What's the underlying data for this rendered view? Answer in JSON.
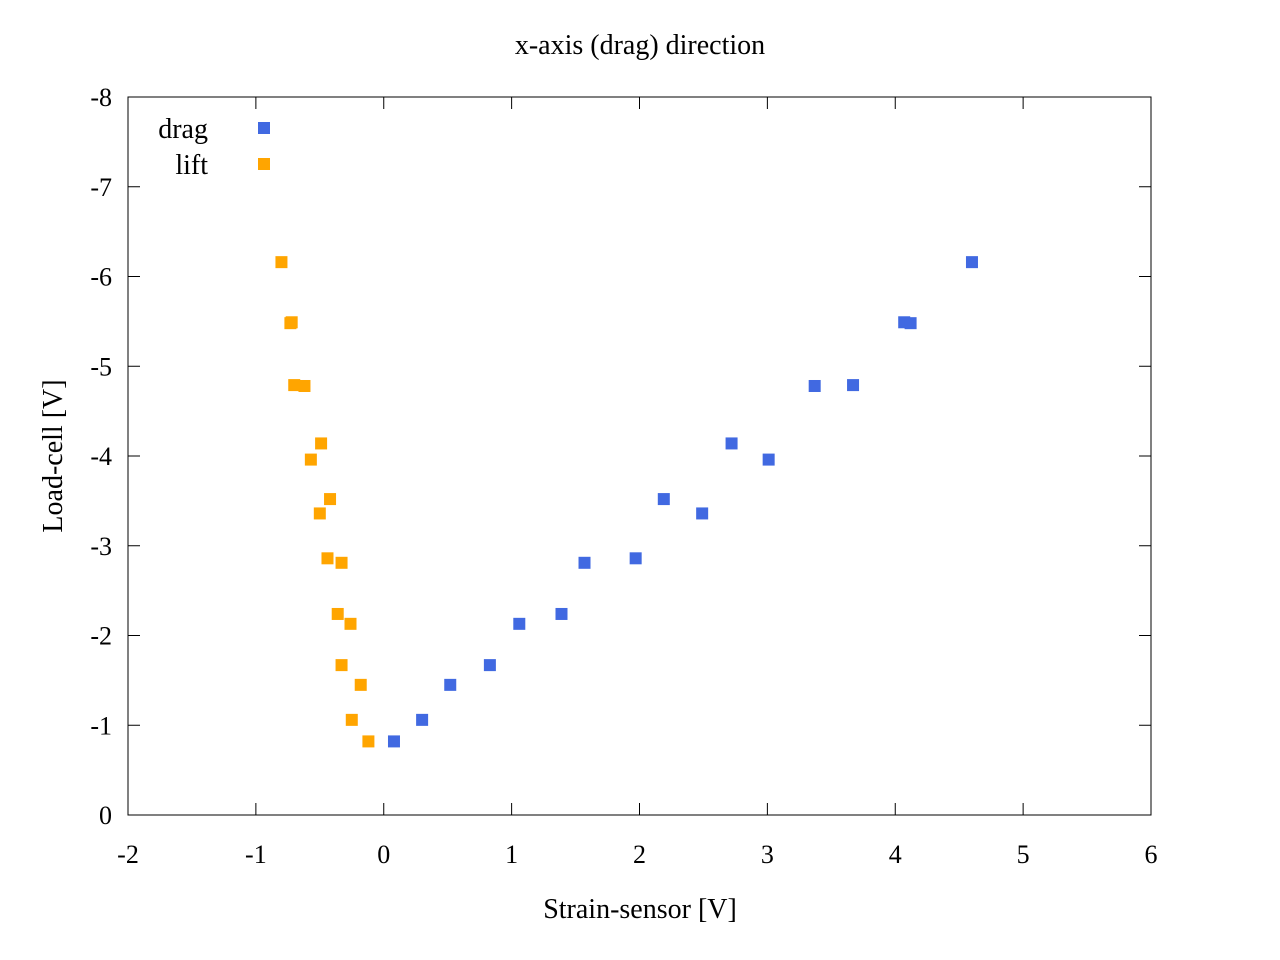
{
  "chart_data": {
    "type": "scatter",
    "title": "x-axis (drag) direction",
    "xlabel": "Strain-sensor [V]",
    "ylabel": "Load-cell [V]",
    "xlim": [
      -2,
      6
    ],
    "ylim": [
      0,
      -8
    ],
    "y_axis_inverted": true,
    "xticks": [
      "-2",
      "-1",
      "0",
      "1",
      "2",
      "3",
      "4",
      "5",
      "6"
    ],
    "xtick_values": [
      -2,
      -1,
      0,
      1,
      2,
      3,
      4,
      5,
      6
    ],
    "yticks": [
      "0",
      "-1",
      "-2",
      "-3",
      "-4",
      "-5",
      "-6",
      "-7",
      "-8"
    ],
    "ytick_values": [
      0,
      -1,
      -2,
      -3,
      -4,
      -5,
      -6,
      -7,
      -8
    ],
    "grid": false,
    "legend_position": "top-left",
    "marker": "square",
    "series": [
      {
        "name": "drag",
        "color": "#4169E1",
        "points": [
          [
            0.08,
            -0.82
          ],
          [
            0.3,
            -1.06
          ],
          [
            0.52,
            -1.45
          ],
          [
            0.83,
            -1.67
          ],
          [
            1.06,
            -2.13
          ],
          [
            1.39,
            -2.24
          ],
          [
            1.57,
            -2.81
          ],
          [
            1.97,
            -2.86
          ],
          [
            2.19,
            -3.52
          ],
          [
            2.49,
            -3.36
          ],
          [
            2.72,
            -4.14
          ],
          [
            3.01,
            -3.96
          ],
          [
            3.37,
            -4.78
          ],
          [
            3.67,
            -4.79
          ],
          [
            4.07,
            -5.49
          ],
          [
            4.12,
            -5.48
          ],
          [
            4.6,
            -6.16
          ]
        ]
      },
      {
        "name": "lift",
        "color": "#FFA500",
        "points": [
          [
            -0.12,
            -0.82
          ],
          [
            -0.25,
            -1.06
          ],
          [
            -0.18,
            -1.45
          ],
          [
            -0.33,
            -1.67
          ],
          [
            -0.26,
            -2.13
          ],
          [
            -0.36,
            -2.24
          ],
          [
            -0.33,
            -2.81
          ],
          [
            -0.44,
            -2.86
          ],
          [
            -0.5,
            -3.36
          ],
          [
            -0.42,
            -3.52
          ],
          [
            -0.57,
            -3.96
          ],
          [
            -0.49,
            -4.14
          ],
          [
            -0.7,
            -4.79
          ],
          [
            -0.62,
            -4.78
          ],
          [
            -0.73,
            -5.48
          ],
          [
            -0.72,
            -5.49
          ],
          [
            -0.8,
            -6.16
          ]
        ]
      }
    ]
  }
}
